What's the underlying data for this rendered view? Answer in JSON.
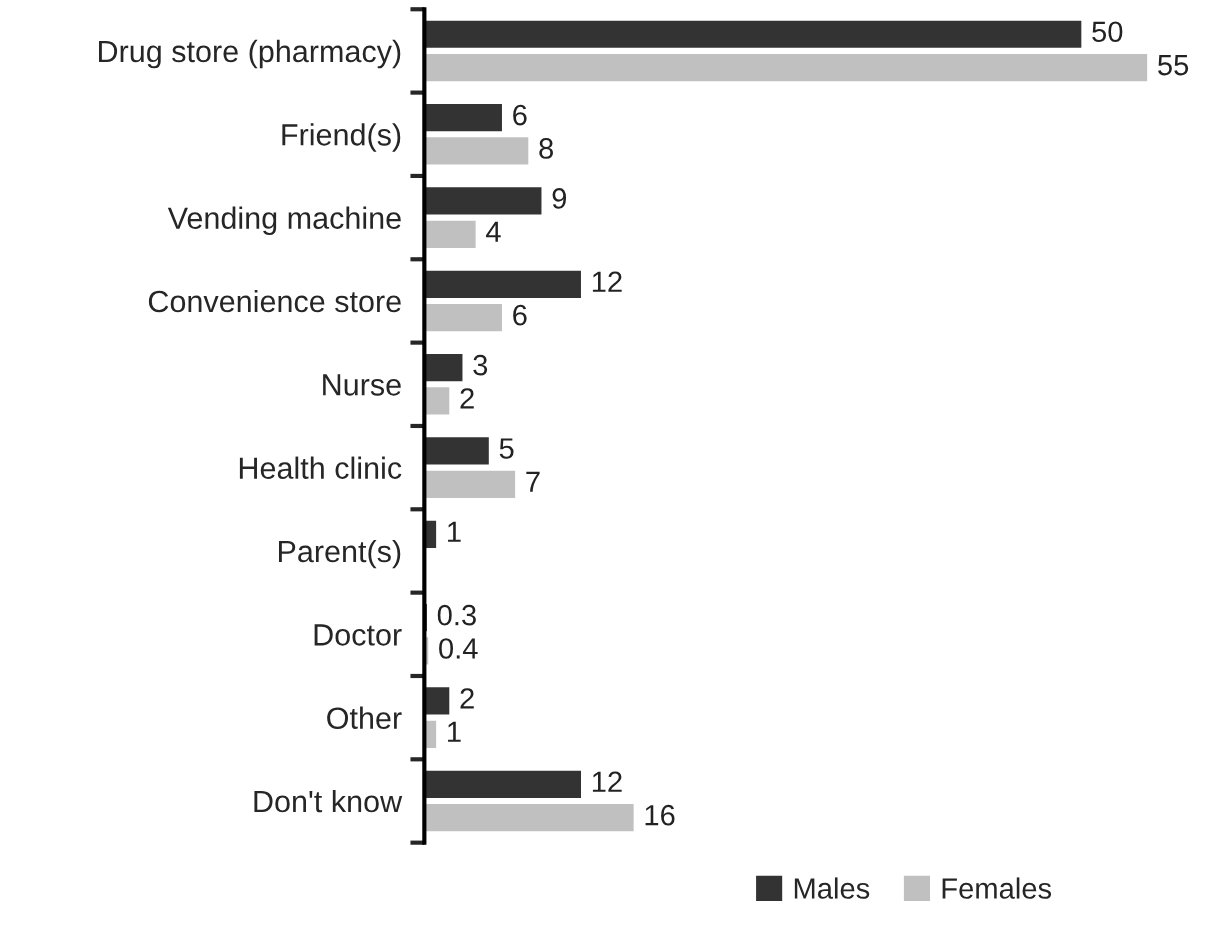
{
  "chart_data": {
    "type": "bar",
    "orientation": "horizontal",
    "data_labels": true,
    "legend": "bottom",
    "grid": false,
    "tick_labels": "y",
    "categories": [
      "Drug store (pharmacy)",
      "Friend(s)",
      "Vending machine",
      "Convenience store",
      "Nurse",
      "Health clinic",
      "Parent(s)",
      "Doctor",
      "Other",
      "Don't know"
    ],
    "series": [
      {
        "name": "Males",
        "color": "#333333",
        "values": [
          50,
          6,
          9,
          12,
          3,
          5,
          1,
          0.3,
          2,
          12
        ]
      },
      {
        "name": "Females",
        "color": "#c0c0c0",
        "values": [
          55,
          8,
          4,
          6,
          2,
          7,
          null,
          0.4,
          1,
          16
        ]
      }
    ]
  }
}
